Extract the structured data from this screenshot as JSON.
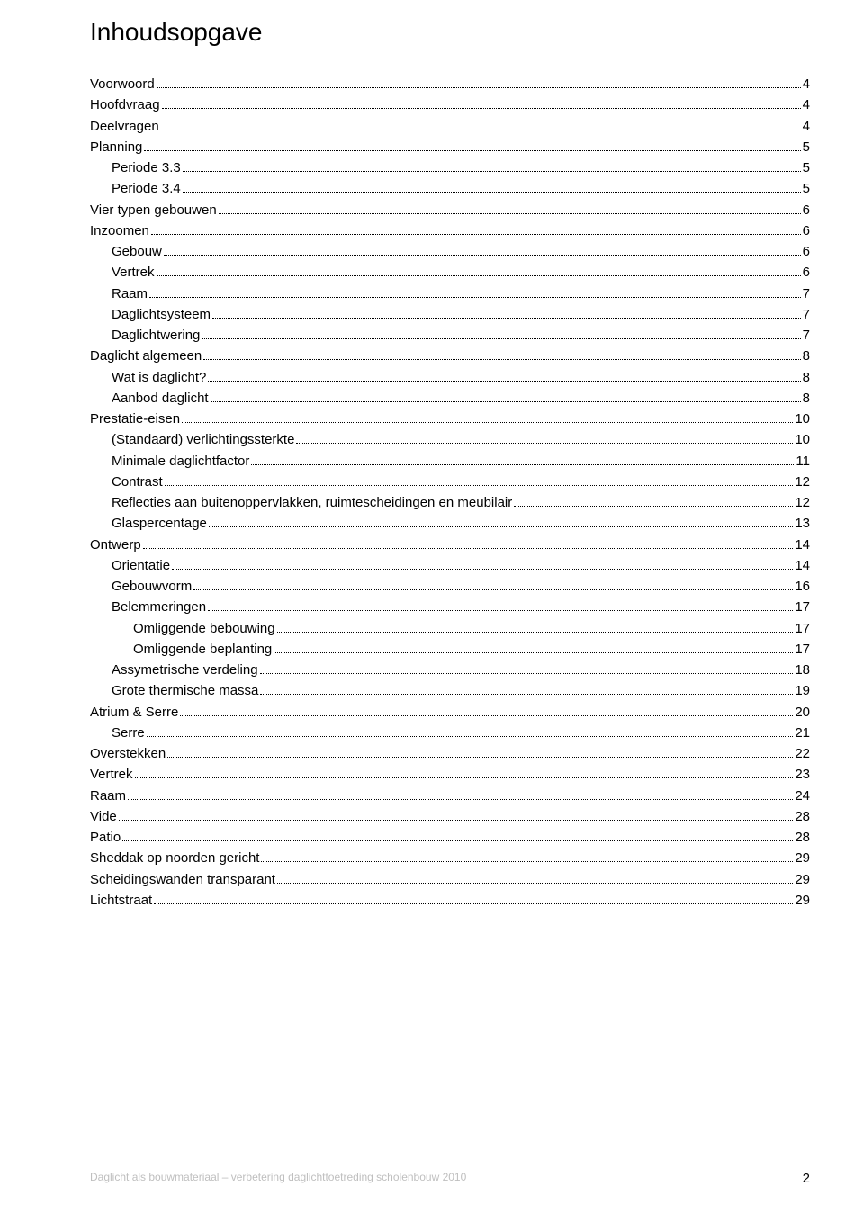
{
  "title": "Inhoudsopgave",
  "footer_left": "Daglicht als bouwmateriaal – verbetering daglichttoetreding scholenbouw 2010",
  "footer_pagenum": "2",
  "background_color": "#ffffff",
  "text_color": "#000000",
  "footer_text_color": "#bfbfbf",
  "title_fontsize": 28,
  "body_fontsize": 15,
  "toc": [
    {
      "label": "Voorwoord",
      "page": "4",
      "indent": 0
    },
    {
      "label": "Hoofdvraag",
      "page": "4",
      "indent": 0
    },
    {
      "label": "Deelvragen",
      "page": "4",
      "indent": 0
    },
    {
      "label": "Planning",
      "page": "5",
      "indent": 0
    },
    {
      "label": "Periode 3.3",
      "page": "5",
      "indent": 1
    },
    {
      "label": "Periode 3.4",
      "page": "5",
      "indent": 1
    },
    {
      "label": "Vier typen gebouwen",
      "page": "6",
      "indent": 0
    },
    {
      "label": "Inzoomen",
      "page": "6",
      "indent": 0
    },
    {
      "label": "Gebouw",
      "page": "6",
      "indent": 1
    },
    {
      "label": "Vertrek",
      "page": "6",
      "indent": 1
    },
    {
      "label": "Raam",
      "page": "7",
      "indent": 1
    },
    {
      "label": "Daglichtsysteem",
      "page": "7",
      "indent": 1
    },
    {
      "label": "Daglichtwering",
      "page": "7",
      "indent": 1
    },
    {
      "label": "Daglicht algemeen",
      "page": "8",
      "indent": 0
    },
    {
      "label": "Wat is daglicht?",
      "page": "8",
      "indent": 1
    },
    {
      "label": "Aanbod daglicht",
      "page": "8",
      "indent": 1
    },
    {
      "label": "Prestatie-eisen",
      "page": "10",
      "indent": 0
    },
    {
      "label": "(Standaard) verlichtingssterkte",
      "page": "10",
      "indent": 1
    },
    {
      "label": "Minimale daglichtfactor",
      "page": "11",
      "indent": 1
    },
    {
      "label": "Contrast",
      "page": "12",
      "indent": 1
    },
    {
      "label": "Reflecties aan buitenoppervlakken, ruimtescheidingen en meubilair",
      "page": "12",
      "indent": 1
    },
    {
      "label": "Glaspercentage",
      "page": "13",
      "indent": 1
    },
    {
      "label": "Ontwerp",
      "page": "14",
      "indent": 0
    },
    {
      "label": "Orientatie",
      "page": "14",
      "indent": 1
    },
    {
      "label": "Gebouwvorm",
      "page": "16",
      "indent": 1
    },
    {
      "label": "Belemmeringen",
      "page": "17",
      "indent": 1
    },
    {
      "label": "Omliggende bebouwing",
      "page": "17",
      "indent": 2
    },
    {
      "label": "Omliggende beplanting",
      "page": "17",
      "indent": 2
    },
    {
      "label": "Assymetrische verdeling",
      "page": "18",
      "indent": 1
    },
    {
      "label": "Grote thermische massa",
      "page": "19",
      "indent": 1
    },
    {
      "label": "Atrium & Serre",
      "page": "20",
      "indent": 0
    },
    {
      "label": "Serre",
      "page": "21",
      "indent": 1
    },
    {
      "label": "Overstekken",
      "page": "22",
      "indent": 0
    },
    {
      "label": "Vertrek",
      "page": "23",
      "indent": 0
    },
    {
      "label": "Raam",
      "page": "24",
      "indent": 0
    },
    {
      "label": "Vide",
      "page": "28",
      "indent": 0
    },
    {
      "label": "Patio",
      "page": "28",
      "indent": 0
    },
    {
      "label": "Sheddak op noorden gericht",
      "page": "29",
      "indent": 0
    },
    {
      "label": "Scheidingswanden transparant",
      "page": "29",
      "indent": 0
    },
    {
      "label": "Lichtstraat",
      "page": "29",
      "indent": 0
    }
  ]
}
